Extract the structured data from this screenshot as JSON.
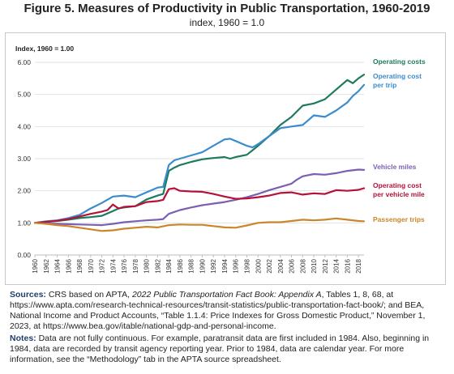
{
  "figure": {
    "title": "Figure 5. Measures of Productivity in Public Transportation, 1960-2019",
    "subtitle": "index, 1960 = 1.0"
  },
  "chart_data": {
    "type": "line",
    "ylabel": "Index, 1960 = 1.00",
    "xlabel": "",
    "xlim": [
      1960,
      2019
    ],
    "ylim": [
      0,
      6
    ],
    "yticks": [
      "0.00",
      "1.00",
      "2.00",
      "3.00",
      "4.00",
      "5.00",
      "6.00"
    ],
    "xticks": [
      "1960",
      "1962",
      "1964",
      "1966",
      "1968",
      "1970",
      "1972",
      "1974",
      "1976",
      "1978",
      "1980",
      "1982",
      "1984",
      "1986",
      "1988",
      "1990",
      "1992",
      "1994",
      "1996",
      "1998",
      "2000",
      "2002",
      "2004",
      "2006",
      "2008",
      "2010",
      "2012",
      "2014",
      "2016",
      "2018"
    ],
    "grid": "horizontal",
    "series": [
      {
        "name": "Operating costs",
        "color": "#1e7a5f",
        "x": [
          1960,
          1962,
          1964,
          1966,
          1968,
          1970,
          1972,
          1974,
          1975,
          1976,
          1978,
          1980,
          1982,
          1983,
          1984,
          1985,
          1986,
          1988,
          1990,
          1992,
          1994,
          1995,
          1996,
          1998,
          2000,
          2002,
          2004,
          2006,
          2008,
          2010,
          2012,
          2014,
          2016,
          2017,
          2018,
          2019
        ],
        "y": [
          1.0,
          1.03,
          1.06,
          1.1,
          1.15,
          1.18,
          1.22,
          1.37,
          1.45,
          1.48,
          1.52,
          1.73,
          1.85,
          1.9,
          2.62,
          2.72,
          2.8,
          2.9,
          2.98,
          3.02,
          3.05,
          3.0,
          3.05,
          3.12,
          3.4,
          3.7,
          4.05,
          4.3,
          4.65,
          4.72,
          4.85,
          5.15,
          5.45,
          5.35,
          5.5,
          5.62
        ]
      },
      {
        "name": "Operating cost per trip",
        "color": "#3b8ccf",
        "x": [
          1960,
          1962,
          1964,
          1966,
          1968,
          1970,
          1972,
          1974,
          1976,
          1978,
          1980,
          1982,
          1983,
          1984,
          1985,
          1986,
          1988,
          1990,
          1991,
          1992,
          1994,
          1995,
          1996,
          1998,
          1999,
          2000,
          2002,
          2004,
          2006,
          2008,
          2010,
          2012,
          2014,
          2016,
          2017,
          2018,
          2019
        ],
        "y": [
          1.0,
          1.05,
          1.08,
          1.15,
          1.25,
          1.45,
          1.62,
          1.82,
          1.85,
          1.8,
          1.95,
          2.1,
          2.12,
          2.8,
          2.95,
          3.0,
          3.1,
          3.2,
          3.3,
          3.4,
          3.6,
          3.62,
          3.55,
          3.4,
          3.35,
          3.45,
          3.7,
          3.95,
          4.0,
          4.05,
          4.35,
          4.3,
          4.5,
          4.75,
          4.95,
          5.1,
          5.3
        ]
      },
      {
        "name": "Vehicle miles",
        "color": "#7a5fb5",
        "x": [
          1960,
          1962,
          1964,
          1966,
          1968,
          1970,
          1972,
          1974,
          1976,
          1978,
          1980,
          1982,
          1983,
          1984,
          1986,
          1988,
          1990,
          1992,
          1994,
          1996,
          1998,
          2000,
          2002,
          2004,
          2006,
          2007,
          2008,
          2010,
          2012,
          2014,
          2016,
          2018,
          2019
        ],
        "y": [
          1.0,
          0.98,
          0.97,
          0.96,
          0.95,
          0.94,
          0.93,
          0.97,
          1.02,
          1.05,
          1.08,
          1.1,
          1.12,
          1.28,
          1.4,
          1.48,
          1.55,
          1.6,
          1.65,
          1.72,
          1.8,
          1.9,
          2.02,
          2.12,
          2.22,
          2.35,
          2.45,
          2.52,
          2.5,
          2.55,
          2.62,
          2.66,
          2.65
        ]
      },
      {
        "name": "Operating cost per vehicle mile",
        "color": "#b5123a",
        "x": [
          1960,
          1962,
          1964,
          1966,
          1968,
          1970,
          1972,
          1973,
          1974,
          1975,
          1976,
          1978,
          1980,
          1982,
          1983,
          1984,
          1985,
          1986,
          1988,
          1990,
          1992,
          1994,
          1996,
          1998,
          2000,
          2002,
          2004,
          2006,
          2008,
          2010,
          2012,
          2014,
          2016,
          2018,
          2019
        ],
        "y": [
          1.0,
          1.03,
          1.07,
          1.12,
          1.2,
          1.28,
          1.35,
          1.4,
          1.57,
          1.45,
          1.5,
          1.52,
          1.65,
          1.68,
          1.72,
          2.05,
          2.08,
          2.0,
          1.98,
          1.97,
          1.9,
          1.82,
          1.75,
          1.76,
          1.8,
          1.85,
          1.93,
          1.95,
          1.88,
          1.92,
          1.9,
          2.02,
          2.0,
          2.03,
          2.08
        ]
      },
      {
        "name": "Passenger trips",
        "color": "#c9862a",
        "x": [
          1960,
          1962,
          1964,
          1966,
          1968,
          1970,
          1972,
          1974,
          1976,
          1978,
          1980,
          1982,
          1984,
          1986,
          1988,
          1990,
          1992,
          1994,
          1996,
          1998,
          2000,
          2002,
          2004,
          2006,
          2008,
          2010,
          2012,
          2014,
          2016,
          2018,
          2019
        ],
        "y": [
          1.0,
          0.97,
          0.93,
          0.9,
          0.85,
          0.8,
          0.75,
          0.77,
          0.82,
          0.85,
          0.88,
          0.86,
          0.93,
          0.95,
          0.94,
          0.94,
          0.9,
          0.86,
          0.85,
          0.92,
          1.0,
          1.02,
          1.02,
          1.06,
          1.1,
          1.08,
          1.1,
          1.14,
          1.1,
          1.06,
          1.05
        ]
      }
    ]
  },
  "sources": {
    "lead": "Sources:",
    "t1": " CRS based on APTA, ",
    "pub": "2022 Public Transportation Fact Book: Appendix A",
    "t2": ", Tables 1, 8, 68, at https://www.apta.com/research-technical-resources/transit-statistics/public-transportation-fact-book/; and BEA, National Income and Product Accounts, “Table 1.1.4: Price Indexes for Gross Domestic Product,” November 1, 2023, at https://www.bea.gov/itable/national-gdp-and-personal-income."
  },
  "notes": {
    "lead": "Notes:",
    "text": " Data are not fully continuous. For example, paratransit data are first included in 1984. Also, beginning in 1984, data are recorded by transit agency reporting year. Prior to 1984, data are calendar year. For more information, see the “Methodology” tab in the APTA source spreadsheet."
  },
  "legend_labels": [
    {
      "series": 0,
      "lines": [
        "Operating costs"
      ]
    },
    {
      "series": 1,
      "lines": [
        "Operating cost",
        "per trip"
      ]
    },
    {
      "series": 2,
      "lines": [
        "Vehicle miles"
      ]
    },
    {
      "series": 3,
      "lines": [
        "Operating cost",
        "per vehicle mile"
      ]
    },
    {
      "series": 4,
      "lines": [
        "Passenger trips"
      ]
    }
  ]
}
